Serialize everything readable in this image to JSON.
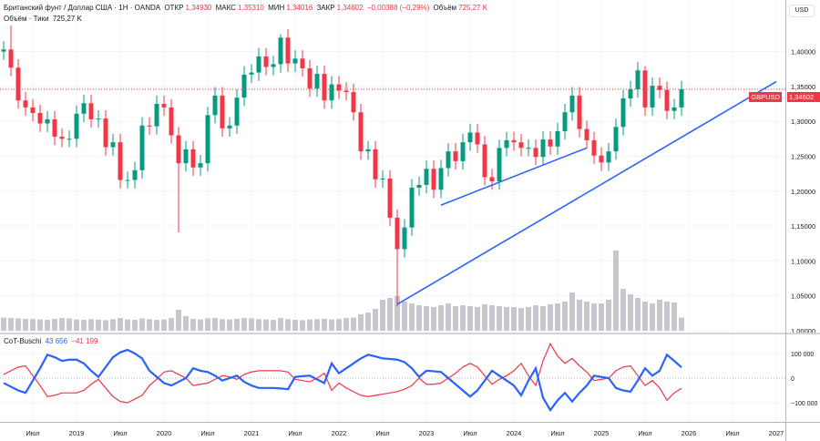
{
  "header": {
    "title": "Британский фунт / Доллар США · 1Н · OANDA",
    "open_label": "ОТКР",
    "open": "1,34930",
    "high_label": "МАКС",
    "high": "1,35310",
    "low_label": "МИН",
    "low": "1,34016",
    "close_label": "ЗАКР",
    "close": "1,34602",
    "change": "−0,00388 (−0,29%)",
    "volume_label": "Объём",
    "volume": "725,27 K",
    "volume_line_label": "Объём · Тики",
    "volume_line_value": "725,27 K"
  },
  "price_axis": {
    "currency": "USD",
    "symbol_tag": "GBPUSD",
    "last_price_tag": "1,34602"
  },
  "indicator": {
    "name": "CoT-Buschi",
    "value_blue": "43 656",
    "value_red": "−41 199"
  },
  "colors": {
    "up": "#089981",
    "down": "#f23645",
    "trendline": "#2962ff",
    "cot_net": "#2962ff",
    "cot_other": "#f23645",
    "volume": "#b2b5be"
  },
  "chart_data": [
    {
      "type": "candlestick",
      "title": "Британский фунт / Доллар США · 1Н · OANDA",
      "start_month": "2018-03",
      "interval": "month",
      "ylim": [
        0.99,
        1.445
      ],
      "yticks": [
        "1,00000",
        "1,05000",
        "1,10000",
        "1,15000",
        "1,20000",
        "1,25000",
        "1,30000",
        "1,35000",
        "1,40000"
      ],
      "ytick_values": [
        1.0,
        1.05,
        1.1,
        1.15,
        1.2,
        1.25,
        1.3,
        1.35,
        1.4
      ],
      "xticks": [
        "Июл",
        "2019",
        "Июл",
        "2020",
        "Июл",
        "2021",
        "Июл",
        "2022",
        "Июл",
        "2023",
        "Июл",
        "2024",
        "Июл",
        "2025",
        "Июл",
        "2026",
        "Июл",
        "2027"
      ],
      "xtick_months": [
        "2018-07",
        "2019-01",
        "2019-07",
        "2020-01",
        "2020-07",
        "2021-01",
        "2021-07",
        "2022-01",
        "2022-07",
        "2023-01",
        "2023-07",
        "2024-01",
        "2024-07",
        "2025-01",
        "2025-07",
        "2026-01",
        "2026-07",
        "2027-01"
      ],
      "first_open": 1.4,
      "close": [
        1.403,
        1.377,
        1.33,
        1.32,
        1.312,
        1.297,
        1.303,
        1.278,
        1.275,
        1.275,
        1.311,
        1.326,
        1.303,
        1.304,
        1.263,
        1.27,
        1.216,
        1.216,
        1.23,
        1.294,
        1.293,
        1.325,
        1.32,
        1.28,
        1.24,
        1.26,
        1.234,
        1.24,
        1.309,
        1.337,
        1.29,
        1.294,
        1.334,
        1.367,
        1.37,
        1.393,
        1.378,
        1.382,
        1.42,
        1.383,
        1.39,
        1.376,
        1.347,
        1.368,
        1.33,
        1.353,
        1.344,
        1.342,
        1.313,
        1.257,
        1.26,
        1.217,
        1.218,
        1.162,
        1.117,
        1.148,
        1.205,
        1.209,
        1.232,
        1.202,
        1.233,
        1.257,
        1.243,
        1.27,
        1.284,
        1.267,
        1.22,
        1.214,
        1.262,
        1.273,
        1.27,
        1.262,
        1.262,
        1.249,
        1.274,
        1.264,
        1.286,
        1.313,
        1.337,
        1.289,
        1.273,
        1.251,
        1.241,
        1.257,
        1.292,
        1.333,
        1.346,
        1.373,
        1.32,
        1.351,
        1.345,
        1.315,
        1.32,
        1.346
      ],
      "extremes": [
        {
          "month": "2018-04",
          "high": 1.437
        },
        {
          "month": "2020-03",
          "low": 1.141
        },
        {
          "month": "2022-09",
          "low": 1.035
        },
        {
          "month": "2021-05",
          "high": 1.425
        },
        {
          "month": "2025-07",
          "high": 1.379
        }
      ],
      "last_price": 1.34602,
      "trendlines": [
        {
          "from": {
            "month": "2022-09",
            "price": 1.038
          },
          "to": {
            "month": "2027-01",
            "price": 1.357
          }
        },
        {
          "from": {
            "month": "2023-03",
            "price": 1.18
          },
          "to": {
            "month": "2024-11",
            "price": 1.262
          }
        }
      ]
    },
    {
      "type": "bar",
      "title": "Объём · Тики",
      "unit": "K",
      "values": [
        720,
        700,
        680,
        650,
        640,
        620,
        600,
        650,
        700,
        680,
        620,
        600,
        640,
        610,
        580,
        640,
        700,
        620,
        600,
        680,
        640,
        600,
        620,
        700,
        1150,
        800,
        650,
        620,
        680,
        700,
        640,
        620,
        660,
        700,
        680,
        640,
        620,
        600,
        700,
        640,
        600,
        580,
        620,
        640,
        660,
        620,
        640,
        700,
        720,
        900,
        1000,
        1200,
        1700,
        1800,
        1900,
        1600,
        1500,
        1400,
        1350,
        1300,
        1400,
        1500,
        1350,
        1400,
        1350,
        1300,
        1450,
        1400,
        1350,
        1300,
        1300,
        1250,
        1300,
        1400,
        1350,
        1450,
        1500,
        1600,
        2100,
        1700,
        1600,
        1500,
        1500,
        1700,
        4400,
        2300,
        2000,
        1800,
        1600,
        1500,
        1700,
        1600,
        1550,
        725.27
      ]
    },
    {
      "type": "line",
      "title": "CoT-Buschi",
      "ylim": [
        -180000,
        180000
      ],
      "yticks": [
        "100 000",
        "0",
        "−100 000"
      ],
      "ytick_values": [
        100000,
        0,
        -100000
      ],
      "series": [
        {
          "name": "43 656",
          "color": "#2962ff",
          "values": [
            -20000,
            -35000,
            -50000,
            -60000,
            -10000,
            40000,
            95000,
            85000,
            70000,
            75000,
            75000,
            60000,
            30000,
            5000,
            45000,
            85000,
            105000,
            115000,
            100000,
            80000,
            30000,
            5000,
            -20000,
            -30000,
            -15000,
            0,
            40000,
            30000,
            25000,
            10000,
            -10000,
            0,
            10000,
            -15000,
            -30000,
            -40000,
            -40000,
            -40000,
            -42000,
            -45000,
            5000,
            8000,
            10000,
            -5000,
            -20000,
            60000,
            20000,
            40000,
            60000,
            80000,
            95000,
            88000,
            80000,
            78000,
            75000,
            65000,
            40000,
            5000,
            30000,
            28000,
            25000,
            0,
            -25000,
            -50000,
            -75000,
            -50000,
            -10000,
            30000,
            10000,
            -10000,
            -30000,
            -70000,
            -10000,
            40000,
            -80000,
            -130000,
            -90000,
            -60000,
            -95000,
            -60000,
            -30000,
            10000,
            5000,
            0,
            -40000,
            -50000,
            -55000,
            -10000,
            40000,
            10000,
            30000,
            95000,
            70000,
            43656
          ]
        },
        {
          "name": "−41 199",
          "color": "#f23645",
          "values": [
            15000,
            30000,
            45000,
            50000,
            10000,
            -30000,
            -75000,
            -70000,
            -60000,
            -60000,
            -60000,
            -50000,
            -25000,
            -5000,
            -40000,
            -75000,
            -95000,
            -100000,
            -85000,
            -70000,
            -30000,
            -5000,
            25000,
            30000,
            15000,
            0,
            -30000,
            -25000,
            -20000,
            -5000,
            10000,
            5000,
            -5000,
            15000,
            25000,
            30000,
            30000,
            30000,
            30000,
            25000,
            -5000,
            -10000,
            -15000,
            0,
            20000,
            -50000,
            -20000,
            -40000,
            -55000,
            -70000,
            -75000,
            -70000,
            -65000,
            -60000,
            -55000,
            -45000,
            -30000,
            0,
            -25000,
            -25000,
            -20000,
            0,
            20000,
            45000,
            60000,
            45000,
            10000,
            -25000,
            -5000,
            10000,
            30000,
            60000,
            10000,
            -30000,
            70000,
            140000,
            90000,
            60000,
            80000,
            50000,
            25000,
            -10000,
            -5000,
            0,
            30000,
            45000,
            50000,
            10000,
            -30000,
            -10000,
            -40000,
            -90000,
            -60000,
            -41199
          ]
        }
      ]
    }
  ]
}
